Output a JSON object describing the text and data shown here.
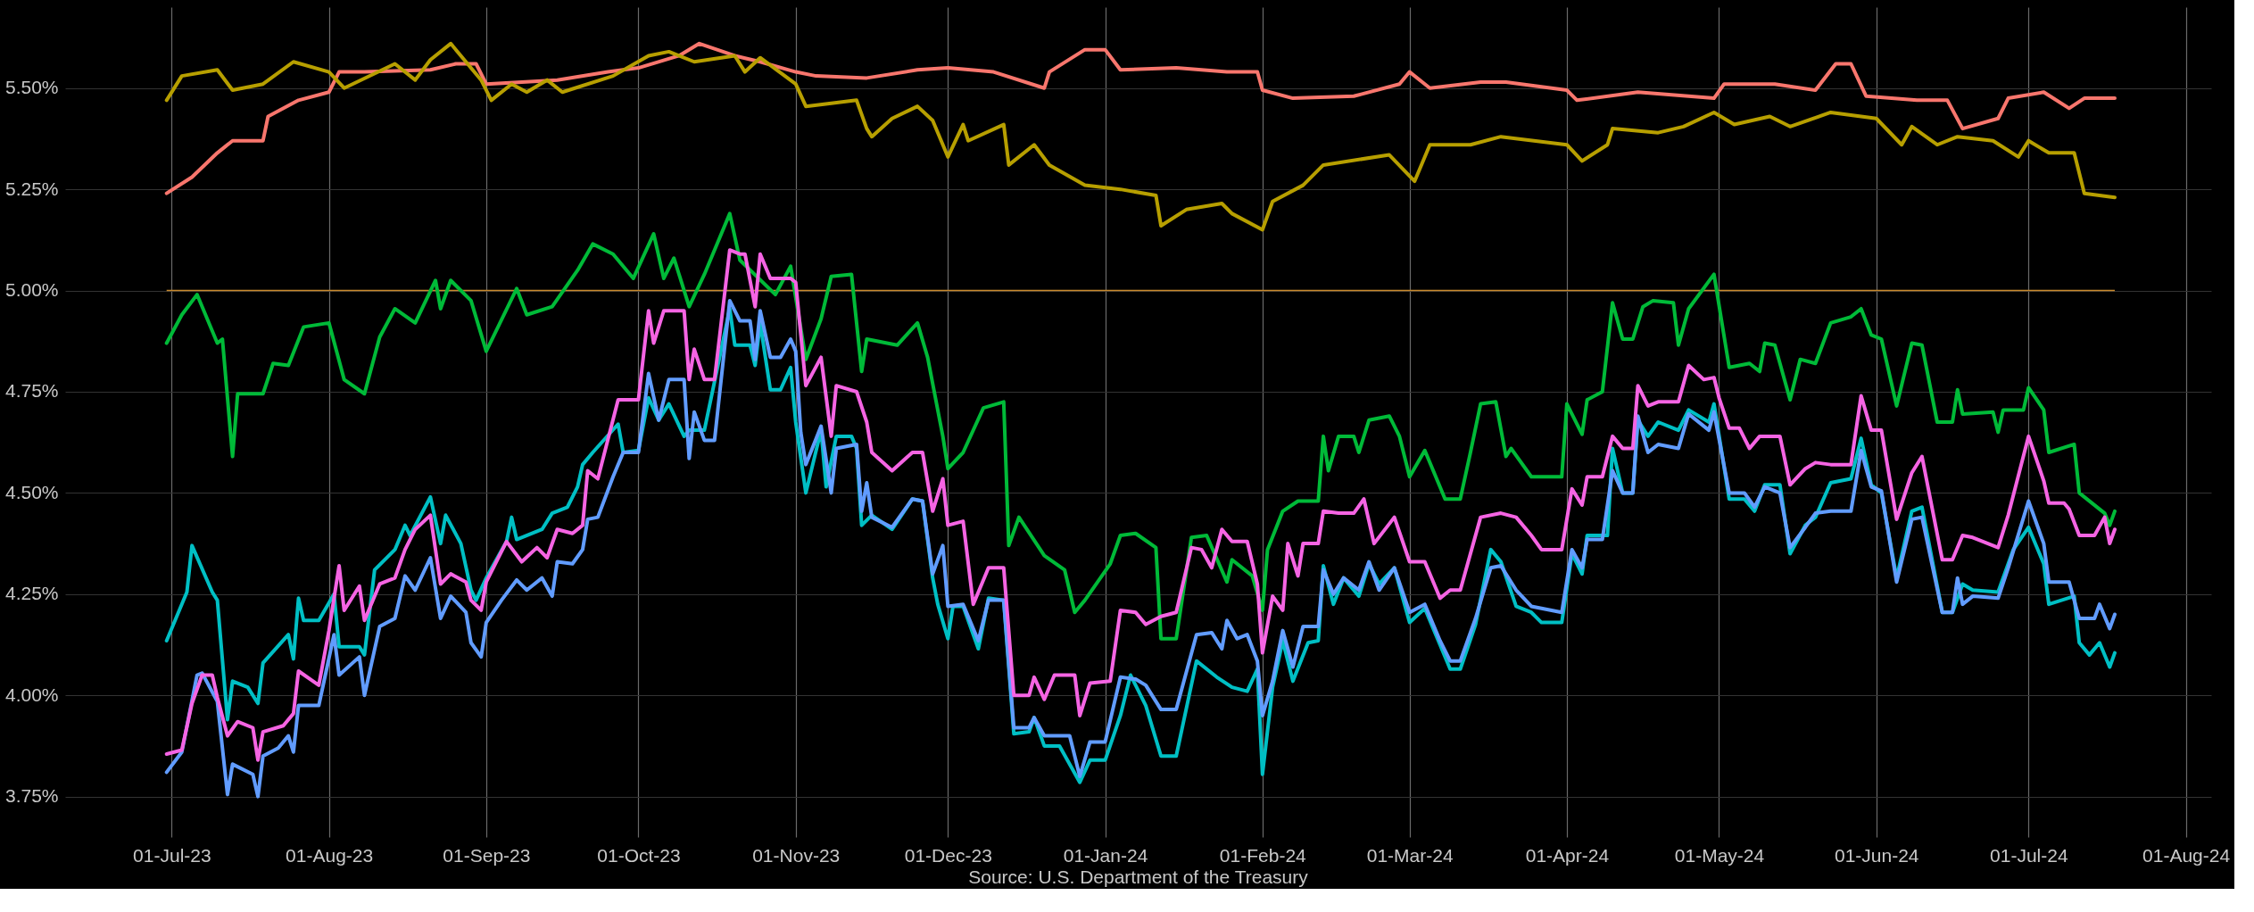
{
  "chart_data": {
    "type": "line",
    "xlim": [
      "2023-06-10",
      "2024-08-06"
    ],
    "ylim": [
      3.65,
      5.7
    ],
    "xticks": [
      {
        "value": "2023-07-01",
        "label": "01-Jul-23"
      },
      {
        "value": "2023-08-01",
        "label": "01-Aug-23"
      },
      {
        "value": "2023-09-01",
        "label": "01-Sep-23"
      },
      {
        "value": "2023-10-01",
        "label": "01-Oct-23"
      },
      {
        "value": "2023-11-01",
        "label": "01-Nov-23"
      },
      {
        "value": "2023-12-01",
        "label": "01-Dec-23"
      },
      {
        "value": "2024-01-01",
        "label": "01-Jan-24"
      },
      {
        "value": "2024-02-01",
        "label": "01-Feb-24"
      },
      {
        "value": "2024-03-01",
        "label": "01-Mar-24"
      },
      {
        "value": "2024-04-01",
        "label": "01-Apr-24"
      },
      {
        "value": "2024-05-01",
        "label": "01-May-24"
      },
      {
        "value": "2024-06-01",
        "label": "01-Jun-24"
      },
      {
        "value": "2024-07-01",
        "label": "01-Jul-24"
      },
      {
        "value": "2024-08-01",
        "label": "01-Aug-24"
      }
    ],
    "yticks": [
      {
        "value": 3.75,
        "label": "3.75%"
      },
      {
        "value": 4.0,
        "label": "4.00%"
      },
      {
        "value": 4.25,
        "label": "4.25%"
      },
      {
        "value": 4.5,
        "label": "4.50%"
      },
      {
        "value": 4.75,
        "label": "4.75%"
      },
      {
        "value": 5.0,
        "label": "5.00%"
      },
      {
        "value": 5.25,
        "label": "5.25%"
      },
      {
        "value": 5.5,
        "label": "5.50%"
      }
    ],
    "grid": true,
    "legend": false,
    "line_style": "solid",
    "ref_lines": [
      {
        "axis": "y",
        "value": 5.0,
        "label": null,
        "color": "#c98a2e"
      }
    ],
    "annotations": [
      "Source: U.S. Department of the Treasury"
    ],
    "series": [
      {
        "color": "#f8766d",
        "x": [
          "2023-06-30",
          "2023-07-05",
          "2023-07-10",
          "2023-07-13",
          "2023-07-19",
          "2023-07-20",
          "2023-07-26",
          "2023-08-01",
          "2023-08-03",
          "2023-08-08",
          "2023-08-21",
          "2023-08-26",
          "2023-08-30",
          "2023-09-01",
          "2023-09-15",
          "2023-09-25",
          "2023-10-01",
          "2023-10-09",
          "2023-10-13",
          "2023-10-20",
          "2023-10-25",
          "2023-11-01",
          "2023-11-05",
          "2023-11-15",
          "2023-11-25",
          "2023-12-01",
          "2023-12-10",
          "2023-12-20",
          "2023-12-21",
          "2023-12-28",
          "2024-01-01",
          "2024-01-04",
          "2024-01-15",
          "2024-01-25",
          "2024-01-31",
          "2024-02-01",
          "2024-02-07",
          "2024-02-19",
          "2024-02-28",
          "2024-03-01",
          "2024-03-05",
          "2024-03-15",
          "2024-03-20",
          "2024-04-01",
          "2024-04-03",
          "2024-04-15",
          "2024-04-25",
          "2024-04-30",
          "2024-05-02",
          "2024-05-12",
          "2024-05-20",
          "2024-05-24",
          "2024-05-27",
          "2024-05-30",
          "2024-06-09",
          "2024-06-15",
          "2024-06-18",
          "2024-06-25",
          "2024-06-27",
          "2024-07-04",
          "2024-07-09",
          "2024-07-12",
          "2024-07-18"
        ],
        "values": [
          5.24,
          5.28,
          5.34,
          5.37,
          5.37,
          5.43,
          5.47,
          5.49,
          5.54,
          5.54,
          5.545,
          5.56,
          5.56,
          5.51,
          5.52,
          5.54,
          5.55,
          5.58,
          5.61,
          5.58,
          5.565,
          5.54,
          5.53,
          5.525,
          5.545,
          5.55,
          5.54,
          5.5,
          5.54,
          5.595,
          5.595,
          5.545,
          5.55,
          5.54,
          5.54,
          5.495,
          5.475,
          5.48,
          5.51,
          5.54,
          5.5,
          5.515,
          5.515,
          5.495,
          5.47,
          5.49,
          5.48,
          5.475,
          5.51,
          5.51,
          5.495,
          5.56,
          5.56,
          5.48,
          5.47,
          5.47,
          5.4,
          5.425,
          5.475,
          5.49,
          5.45,
          5.475,
          5.475
        ]
      },
      {
        "color": "#b79f00",
        "x": [
          "2023-06-30",
          "2023-07-03",
          "2023-07-10",
          "2023-07-13",
          "2023-07-19",
          "2023-07-25",
          "2023-08-01",
          "2023-08-04",
          "2023-08-14",
          "2023-08-18",
          "2023-08-21",
          "2023-08-25",
          "2023-08-31",
          "2023-09-02",
          "2023-09-06",
          "2023-09-09",
          "2023-09-13",
          "2023-09-16",
          "2023-09-26",
          "2023-10-03",
          "2023-10-07",
          "2023-10-12",
          "2023-10-20",
          "2023-10-22",
          "2023-10-25",
          "2023-11-01",
          "2023-11-03",
          "2023-11-13",
          "2023-11-15",
          "2023-11-16",
          "2023-11-20",
          "2023-11-25",
          "2023-11-28",
          "2023-12-01",
          "2023-12-04",
          "2023-12-05",
          "2023-12-12",
          "2023-12-13",
          "2023-12-18",
          "2023-12-21",
          "2023-12-28",
          "2024-01-04",
          "2024-01-11",
          "2024-01-12",
          "2024-01-17",
          "2024-01-24",
          "2024-01-26",
          "2024-02-01",
          "2024-02-03",
          "2024-02-09",
          "2024-02-13",
          "2024-02-26",
          "2024-03-02",
          "2024-03-05",
          "2024-03-13",
          "2024-03-19",
          "2024-04-01",
          "2024-04-04",
          "2024-04-09",
          "2024-04-10",
          "2024-04-19",
          "2024-04-24",
          "2024-04-30",
          "2024-05-04",
          "2024-05-11",
          "2024-05-15",
          "2024-05-23",
          "2024-06-01",
          "2024-06-06",
          "2024-06-08",
          "2024-06-13",
          "2024-06-17",
          "2024-06-24",
          "2024-06-29",
          "2024-07-01",
          "2024-07-05",
          "2024-07-10",
          "2024-07-12",
          "2024-07-18"
        ],
        "values": [
          5.47,
          5.53,
          5.545,
          5.495,
          5.51,
          5.565,
          5.54,
          5.5,
          5.56,
          5.52,
          5.57,
          5.61,
          5.52,
          5.47,
          5.51,
          5.49,
          5.52,
          5.49,
          5.53,
          5.58,
          5.59,
          5.565,
          5.58,
          5.54,
          5.575,
          5.51,
          5.455,
          5.47,
          5.4,
          5.38,
          5.425,
          5.455,
          5.42,
          5.33,
          5.41,
          5.37,
          5.41,
          5.31,
          5.36,
          5.31,
          5.26,
          5.25,
          5.235,
          5.16,
          5.2,
          5.215,
          5.19,
          5.15,
          5.22,
          5.26,
          5.31,
          5.335,
          5.27,
          5.36,
          5.36,
          5.38,
          5.36,
          5.32,
          5.36,
          5.4,
          5.39,
          5.405,
          5.44,
          5.41,
          5.43,
          5.405,
          5.44,
          5.425,
          5.36,
          5.405,
          5.36,
          5.38,
          5.37,
          5.33,
          5.37,
          5.34,
          5.34,
          5.24,
          5.23
        ]
      },
      {
        "color": "#00ba38",
        "x": [
          "2023-06-30",
          "2023-07-03",
          "2023-07-06",
          "2023-07-10",
          "2023-07-11",
          "2023-07-13",
          "2023-07-14",
          "2023-07-19",
          "2023-07-21",
          "2023-07-24",
          "2023-07-27",
          "2023-08-01",
          "2023-08-04",
          "2023-08-08",
          "2023-08-11",
          "2023-08-14",
          "2023-08-18",
          "2023-08-22",
          "2023-08-23",
          "2023-08-25",
          "2023-08-29",
          "2023-09-01",
          "2023-09-07",
          "2023-09-09",
          "2023-09-14",
          "2023-09-19",
          "2023-09-22",
          "2023-09-26",
          "2023-09-30",
          "2023-10-04",
          "2023-10-06",
          "2023-10-08",
          "2023-10-11",
          "2023-10-14",
          "2023-10-19",
          "2023-10-21",
          "2023-10-28",
          "2023-10-31",
          "2023-11-03",
          "2023-11-06",
          "2023-11-08",
          "2023-11-12",
          "2023-11-14",
          "2023-11-15",
          "2023-11-21",
          "2023-11-25",
          "2023-11-27",
          "2023-11-30",
          "2023-12-01",
          "2023-12-04",
          "2023-12-08",
          "2023-12-12",
          "2023-12-13",
          "2023-12-15",
          "2023-12-20",
          "2023-12-24",
          "2023-12-26",
          "2023-12-28",
          "2024-01-02",
          "2024-01-04",
          "2024-01-07",
          "2024-01-11",
          "2024-01-12",
          "2024-01-15",
          "2024-01-18",
          "2024-01-21",
          "2024-01-25",
          "2024-01-26",
          "2024-01-30",
          "2024-02-01",
          "2024-02-02",
          "2024-02-05",
          "2024-02-08",
          "2024-02-12",
          "2024-02-13",
          "2024-02-14",
          "2024-02-16",
          "2024-02-19",
          "2024-02-20",
          "2024-02-22",
          "2024-02-26",
          "2024-02-28",
          "2024-03-01",
          "2024-03-04",
          "2024-03-08",
          "2024-03-11",
          "2024-03-13",
          "2024-03-15",
          "2024-03-18",
          "2024-03-20",
          "2024-03-21",
          "2024-03-25",
          "2024-03-31",
          "2024-04-01",
          "2024-04-04",
          "2024-04-05",
          "2024-04-08",
          "2024-04-10",
          "2024-04-12",
          "2024-04-14",
          "2024-04-16",
          "2024-04-18",
          "2024-04-22",
          "2024-04-23",
          "2024-04-25",
          "2024-04-30",
          "2024-05-03",
          "2024-05-07",
          "2024-05-09",
          "2024-05-10",
          "2024-05-12",
          "2024-05-15",
          "2024-05-17",
          "2024-05-20",
          "2024-05-23",
          "2024-05-27",
          "2024-05-29",
          "2024-05-31",
          "2024-06-02",
          "2024-06-05",
          "2024-06-08",
          "2024-06-10",
          "2024-06-13",
          "2024-06-16",
          "2024-06-17",
          "2024-06-18",
          "2024-06-24",
          "2024-06-25",
          "2024-06-26",
          "2024-06-30",
          "2024-07-01",
          "2024-07-04",
          "2024-07-05",
          "2024-07-10",
          "2024-07-11",
          "2024-07-16",
          "2024-07-17",
          "2024-07-18"
        ],
        "values": [
          4.87,
          4.94,
          4.99,
          4.87,
          4.88,
          4.59,
          4.745,
          4.745,
          4.82,
          4.815,
          4.91,
          4.92,
          4.78,
          4.745,
          4.885,
          4.955,
          4.92,
          5.025,
          4.955,
          5.025,
          4.975,
          4.85,
          5.005,
          4.94,
          4.96,
          5.05,
          5.115,
          5.09,
          5.03,
          5.14,
          5.03,
          5.08,
          4.96,
          5.04,
          5.19,
          5.075,
          4.99,
          5.06,
          4.83,
          4.93,
          5.035,
          5.04,
          4.8,
          4.88,
          4.865,
          4.92,
          4.835,
          4.64,
          4.56,
          4.6,
          4.71,
          4.725,
          4.37,
          4.44,
          4.345,
          4.31,
          4.205,
          4.235,
          4.325,
          4.395,
          4.4,
          4.365,
          4.14,
          4.14,
          4.39,
          4.395,
          4.28,
          4.335,
          4.295,
          4.21,
          4.36,
          4.455,
          4.48,
          4.48,
          4.64,
          4.555,
          4.64,
          4.64,
          4.6,
          4.68,
          4.69,
          4.64,
          4.54,
          4.605,
          4.485,
          4.485,
          4.6,
          4.72,
          4.725,
          4.59,
          4.61,
          4.54,
          4.54,
          4.72,
          4.645,
          4.73,
          4.75,
          4.97,
          4.88,
          4.88,
          4.96,
          4.975,
          4.97,
          4.865,
          4.955,
          5.04,
          4.81,
          4.82,
          4.8,
          4.87,
          4.865,
          4.73,
          4.83,
          4.82,
          4.92,
          4.935,
          4.955,
          4.89,
          4.88,
          4.715,
          4.87,
          4.865,
          4.675,
          4.675,
          4.755,
          4.695,
          4.7,
          4.65,
          4.705,
          4.705,
          4.76,
          4.705,
          4.6,
          4.62,
          4.5,
          4.45,
          4.42,
          4.455
        ]
      },
      {
        "color": "#00bfc4",
        "x": [
          "2023-06-30",
          "2023-07-04",
          "2023-07-05",
          "2023-07-09",
          "2023-07-10",
          "2023-07-12",
          "2023-07-13",
          "2023-07-16",
          "2023-07-18",
          "2023-07-19",
          "2023-07-24",
          "2023-07-25",
          "2023-07-26",
          "2023-07-27",
          "2023-07-30",
          "2023-08-02",
          "2023-08-03",
          "2023-08-07",
          "2023-08-08",
          "2023-08-10",
          "2023-08-14",
          "2023-08-16",
          "2023-08-17",
          "2023-08-21",
          "2023-08-23",
          "2023-08-24",
          "2023-08-27",
          "2023-08-29",
          "2023-08-30",
          "2023-09-01",
          "2023-09-05",
          "2023-09-06",
          "2023-09-07",
          "2023-09-12",
          "2023-09-14",
          "2023-09-17",
          "2023-09-19",
          "2023-09-20",
          "2023-09-22",
          "2023-09-27",
          "2023-09-28",
          "2023-10-01",
          "2023-10-03",
          "2023-10-05",
          "2023-10-07",
          "2023-10-10",
          "2023-10-11",
          "2023-10-14",
          "2023-10-19",
          "2023-10-20",
          "2023-10-23",
          "2023-10-24",
          "2023-10-25",
          "2023-10-27",
          "2023-10-29",
          "2023-10-31",
          "2023-11-01",
          "2023-11-03",
          "2023-11-06",
          "2023-11-07",
          "2023-11-09",
          "2023-11-12",
          "2023-11-13",
          "2023-11-14",
          "2023-11-16",
          "2023-11-20",
          "2023-11-24",
          "2023-11-26",
          "2023-11-28",
          "2023-11-29",
          "2023-12-01",
          "2023-12-02",
          "2023-12-04",
          "2023-12-07",
          "2023-12-09",
          "2023-12-12",
          "2023-12-14",
          "2023-12-17",
          "2023-12-18",
          "2023-12-20",
          "2023-12-23",
          "2023-12-27",
          "2023-12-29",
          "2024-01-01",
          "2024-01-04",
          "2024-01-06",
          "2024-01-09",
          "2024-01-12",
          "2024-01-15",
          "2024-01-19",
          "2024-01-23",
          "2024-01-26",
          "2024-01-29",
          "2024-01-31",
          "2024-02-01",
          "2024-02-03",
          "2024-02-05",
          "2024-02-07",
          "2024-02-10",
          "2024-02-12",
          "2024-02-13",
          "2024-02-15",
          "2024-02-17",
          "2024-02-20",
          "2024-02-22",
          "2024-02-24",
          "2024-02-27",
          "2024-03-01",
          "2024-03-04",
          "2024-03-07",
          "2024-03-09",
          "2024-03-11",
          "2024-03-14",
          "2024-03-17",
          "2024-03-19",
          "2024-03-22",
          "2024-03-25",
          "2024-03-27",
          "2024-03-31",
          "2024-04-02",
          "2024-04-04",
          "2024-04-05",
          "2024-04-09",
          "2024-04-10",
          "2024-04-12",
          "2024-04-14",
          "2024-04-15",
          "2024-04-17",
          "2024-04-19",
          "2024-04-23",
          "2024-04-25",
          "2024-04-29",
          "2024-04-30",
          "2024-05-03",
          "2024-05-06",
          "2024-05-08",
          "2024-05-10",
          "2024-05-13",
          "2024-05-15",
          "2024-05-18",
          "2024-05-20",
          "2024-05-23",
          "2024-05-27",
          "2024-05-29",
          "2024-05-31",
          "2024-06-02",
          "2024-06-05",
          "2024-06-08",
          "2024-06-10",
          "2024-06-14",
          "2024-06-16",
          "2024-06-18",
          "2024-06-20",
          "2024-06-25",
          "2024-06-28",
          "2024-07-01",
          "2024-07-04",
          "2024-07-05",
          "2024-07-10",
          "2024-07-11",
          "2024-07-13",
          "2024-07-15",
          "2024-07-17",
          "2024-07-18"
        ],
        "values": [
          4.135,
          4.255,
          4.37,
          4.255,
          4.235,
          3.94,
          4.035,
          4.02,
          3.98,
          4.08,
          4.15,
          4.09,
          4.24,
          4.185,
          4.185,
          4.25,
          4.12,
          4.12,
          4.1,
          4.31,
          4.36,
          4.42,
          4.395,
          4.49,
          4.375,
          4.445,
          4.375,
          4.26,
          4.235,
          4.29,
          4.38,
          4.44,
          4.385,
          4.41,
          4.45,
          4.465,
          4.515,
          4.57,
          4.6,
          4.67,
          4.6,
          4.605,
          4.735,
          4.68,
          4.72,
          4.64,
          4.655,
          4.655,
          4.955,
          4.865,
          4.865,
          4.815,
          4.92,
          4.755,
          4.755,
          4.81,
          4.675,
          4.5,
          4.655,
          4.515,
          4.64,
          4.64,
          4.61,
          4.42,
          4.445,
          4.41,
          4.485,
          4.48,
          4.29,
          4.225,
          4.14,
          4.22,
          4.22,
          4.115,
          4.24,
          4.235,
          3.905,
          3.91,
          3.945,
          3.875,
          3.875,
          3.785,
          3.84,
          3.84,
          3.95,
          4.05,
          3.975,
          3.85,
          3.85,
          4.085,
          4.045,
          4.02,
          4.01,
          4.065,
          3.805,
          4.02,
          4.135,
          4.035,
          4.13,
          4.135,
          4.32,
          4.225,
          4.29,
          4.245,
          4.325,
          4.275,
          4.315,
          4.18,
          4.215,
          4.125,
          4.065,
          4.065,
          4.175,
          4.36,
          4.33,
          4.22,
          4.205,
          4.18,
          4.18,
          4.35,
          4.3,
          4.395,
          4.395,
          4.61,
          4.5,
          4.5,
          4.68,
          4.64,
          4.675,
          4.655,
          4.705,
          4.675,
          4.72,
          4.485,
          4.485,
          4.455,
          4.52,
          4.52,
          4.35,
          4.42,
          4.44,
          4.525,
          4.535,
          4.635,
          4.52,
          4.5,
          4.29,
          4.455,
          4.465,
          4.205,
          4.205,
          4.275,
          4.26,
          4.255,
          4.36,
          4.415,
          4.325,
          4.225,
          4.245,
          4.13,
          4.1,
          4.13,
          4.07,
          4.105
        ]
      },
      {
        "color": "#619cff",
        "x": [
          "2023-06-30",
          "2023-07-03",
          "2023-07-06",
          "2023-07-07",
          "2023-07-10",
          "2023-07-12",
          "2023-07-13",
          "2023-07-17",
          "2023-07-18",
          "2023-07-19",
          "2023-07-22",
          "2023-07-24",
          "2023-07-25",
          "2023-07-26",
          "2023-07-30",
          "2023-08-02",
          "2023-08-03",
          "2023-08-07",
          "2023-08-08",
          "2023-08-11",
          "2023-08-14",
          "2023-08-16",
          "2023-08-18",
          "2023-08-21",
          "2023-08-23",
          "2023-08-25",
          "2023-08-28",
          "2023-08-29",
          "2023-08-31",
          "2023-09-01",
          "2023-09-04",
          "2023-09-07",
          "2023-09-09",
          "2023-09-12",
          "2023-09-14",
          "2023-09-15",
          "2023-09-18",
          "2023-09-20",
          "2023-09-21",
          "2023-09-23",
          "2023-09-26",
          "2023-09-28",
          "2023-10-01",
          "2023-10-03",
          "2023-10-05",
          "2023-10-07",
          "2023-10-10",
          "2023-10-11",
          "2023-10-12",
          "2023-10-14",
          "2023-10-16",
          "2023-10-19",
          "2023-10-21",
          "2023-10-23",
          "2023-10-24",
          "2023-10-25",
          "2023-10-27",
          "2023-10-29",
          "2023-10-31",
          "2023-11-01",
          "2023-11-02",
          "2023-11-03",
          "2023-11-06",
          "2023-11-08",
          "2023-11-09",
          "2023-11-13",
          "2023-11-14",
          "2023-11-15",
          "2023-11-16",
          "2023-11-20",
          "2023-11-24",
          "2023-11-26",
          "2023-11-28",
          "2023-11-30",
          "2023-12-01",
          "2023-12-04",
          "2023-12-07",
          "2023-12-09",
          "2023-12-12",
          "2023-12-14",
          "2023-12-17",
          "2023-12-18",
          "2023-12-20",
          "2023-12-25",
          "2023-12-27",
          "2023-12-29",
          "2024-01-01",
          "2024-01-04",
          "2024-01-07",
          "2024-01-09",
          "2024-01-12",
          "2024-01-15",
          "2024-01-19",
          "2024-01-22",
          "2024-01-24",
          "2024-01-25",
          "2024-01-27",
          "2024-01-29",
          "2024-01-31",
          "2024-02-01",
          "2024-02-03",
          "2024-02-05",
          "2024-02-07",
          "2024-02-09",
          "2024-02-12",
          "2024-02-13",
          "2024-02-15",
          "2024-02-17",
          "2024-02-20",
          "2024-02-22",
          "2024-02-24",
          "2024-02-27",
          "2024-03-01",
          "2024-03-04",
          "2024-03-07",
          "2024-03-09",
          "2024-03-11",
          "2024-03-14",
          "2024-03-17",
          "2024-03-19",
          "2024-03-22",
          "2024-03-25",
          "2024-03-31",
          "2024-04-02",
          "2024-04-04",
          "2024-04-05",
          "2024-04-08",
          "2024-04-10",
          "2024-04-12",
          "2024-04-14",
          "2024-04-15",
          "2024-04-17",
          "2024-04-19",
          "2024-04-23",
          "2024-04-25",
          "2024-04-29",
          "2024-04-30",
          "2024-05-03",
          "2024-05-06",
          "2024-05-08",
          "2024-05-10",
          "2024-05-13",
          "2024-05-15",
          "2024-05-18",
          "2024-05-20",
          "2024-05-23",
          "2024-05-27",
          "2024-05-29",
          "2024-05-31",
          "2024-06-02",
          "2024-06-05",
          "2024-06-08",
          "2024-06-10",
          "2024-06-14",
          "2024-06-16",
          "2024-06-17",
          "2024-06-18",
          "2024-06-20",
          "2024-06-25",
          "2024-06-27",
          "2024-07-01",
          "2024-07-04",
          "2024-07-05",
          "2024-07-09",
          "2024-07-11",
          "2024-07-14",
          "2024-07-15",
          "2024-07-17",
          "2024-07-18"
        ],
        "values": [
          3.81,
          3.86,
          4.05,
          4.055,
          3.985,
          3.755,
          3.83,
          3.805,
          3.75,
          3.85,
          3.87,
          3.9,
          3.86,
          3.975,
          3.975,
          4.15,
          4.05,
          4.095,
          4.0,
          4.17,
          4.19,
          4.295,
          4.26,
          4.34,
          4.19,
          4.245,
          4.205,
          4.13,
          4.095,
          4.18,
          4.235,
          4.285,
          4.26,
          4.29,
          4.245,
          4.33,
          4.325,
          4.36,
          4.435,
          4.44,
          4.54,
          4.6,
          4.6,
          4.795,
          4.68,
          4.78,
          4.78,
          4.585,
          4.7,
          4.63,
          4.63,
          4.975,
          4.925,
          4.925,
          4.83,
          4.95,
          4.835,
          4.835,
          4.88,
          4.85,
          4.65,
          4.57,
          4.665,
          4.5,
          4.61,
          4.62,
          4.455,
          4.525,
          4.44,
          4.415,
          4.485,
          4.48,
          4.3,
          4.37,
          4.22,
          4.225,
          4.135,
          4.235,
          4.235,
          3.92,
          3.92,
          3.945,
          3.9,
          3.9,
          3.8,
          3.885,
          3.885,
          4.045,
          4.04,
          4.025,
          3.965,
          3.965,
          4.15,
          4.155,
          4.115,
          4.185,
          4.14,
          4.15,
          4.085,
          3.95,
          4.035,
          4.16,
          4.07,
          4.17,
          4.17,
          4.31,
          4.25,
          4.29,
          4.26,
          4.33,
          4.26,
          4.315,
          4.205,
          4.225,
          4.135,
          4.085,
          4.085,
          4.19,
          4.315,
          4.32,
          4.26,
          4.22,
          4.205,
          4.36,
          4.315,
          4.385,
          4.385,
          4.555,
          4.5,
          4.5,
          4.69,
          4.6,
          4.62,
          4.61,
          4.695,
          4.655,
          4.7,
          4.5,
          4.5,
          4.465,
          4.515,
          4.5,
          4.365,
          4.415,
          4.45,
          4.455,
          4.455,
          4.605,
          4.515,
          4.505,
          4.28,
          4.435,
          4.44,
          4.205,
          4.205,
          4.29,
          4.225,
          4.245,
          4.24,
          4.315,
          4.48,
          4.375,
          4.28,
          4.28,
          4.19,
          4.19,
          4.225,
          4.165,
          4.2
        ]
      },
      {
        "color": "#f564e3",
        "x": [
          "2023-06-30",
          "2023-07-03",
          "2023-07-05",
          "2023-07-07",
          "2023-07-09",
          "2023-07-10",
          "2023-07-12",
          "2023-07-14",
          "2023-07-17",
          "2023-07-18",
          "2023-07-19",
          "2023-07-23",
          "2023-07-25",
          "2023-07-26",
          "2023-07-30",
          "2023-08-01",
          "2023-08-03",
          "2023-08-04",
          "2023-08-07",
          "2023-08-08",
          "2023-08-11",
          "2023-08-14",
          "2023-08-16",
          "2023-08-18",
          "2023-08-21",
          "2023-08-23",
          "2023-08-25",
          "2023-08-28",
          "2023-08-29",
          "2023-08-31",
          "2023-09-01",
          "2023-09-05",
          "2023-09-08",
          "2023-09-11",
          "2023-09-13",
          "2023-09-15",
          "2023-09-18",
          "2023-09-20",
          "2023-09-21",
          "2023-09-23",
          "2023-09-27",
          "2023-09-29",
          "2023-10-01",
          "2023-10-03",
          "2023-10-04",
          "2023-10-06",
          "2023-10-10",
          "2023-10-11",
          "2023-10-12",
          "2023-10-14",
          "2023-10-16",
          "2023-10-19",
          "2023-10-21",
          "2023-10-22",
          "2023-10-24",
          "2023-10-25",
          "2023-10-27",
          "2023-10-31",
          "2023-11-01",
          "2023-11-03",
          "2023-11-06",
          "2023-11-08",
          "2023-11-09",
          "2023-11-13",
          "2023-11-15",
          "2023-11-16",
          "2023-11-20",
          "2023-11-24",
          "2023-11-26",
          "2023-11-28",
          "2023-11-30",
          "2023-12-01",
          "2023-12-04",
          "2023-12-06",
          "2023-12-09",
          "2023-12-12",
          "2023-12-14",
          "2023-12-17",
          "2023-12-18",
          "2023-12-20",
          "2023-12-22",
          "2023-12-26",
          "2023-12-27",
          "2023-12-29",
          "2024-01-02",
          "2024-01-04",
          "2024-01-07",
          "2024-01-09",
          "2024-01-12",
          "2024-01-15",
          "2024-01-18",
          "2024-01-20",
          "2024-01-22",
          "2024-01-24",
          "2024-01-26",
          "2024-01-29",
          "2024-01-31",
          "2024-02-01",
          "2024-02-03",
          "2024-02-05",
          "2024-02-06",
          "2024-02-08",
          "2024-02-09",
          "2024-02-12",
          "2024-02-13",
          "2024-02-16",
          "2024-02-19",
          "2024-02-21",
          "2024-02-23",
          "2024-02-27",
          "2024-03-01",
          "2024-03-04",
          "2024-03-07",
          "2024-03-09",
          "2024-03-11",
          "2024-03-15",
          "2024-03-19",
          "2024-03-22",
          "2024-03-25",
          "2024-03-27",
          "2024-03-31",
          "2024-04-02",
          "2024-04-04",
          "2024-04-05",
          "2024-04-08",
          "2024-04-10",
          "2024-04-12",
          "2024-04-14",
          "2024-04-15",
          "2024-04-17",
          "2024-04-19",
          "2024-04-23",
          "2024-04-25",
          "2024-04-28",
          "2024-04-30",
          "2024-05-01",
          "2024-05-03",
          "2024-05-05",
          "2024-05-07",
          "2024-05-09",
          "2024-05-13",
          "2024-05-15",
          "2024-05-18",
          "2024-05-20",
          "2024-05-23",
          "2024-05-27",
          "2024-05-29",
          "2024-05-31",
          "2024-06-02",
          "2024-06-05",
          "2024-06-08",
          "2024-06-10",
          "2024-06-14",
          "2024-06-16",
          "2024-06-18",
          "2024-06-20",
          "2024-06-25",
          "2024-06-27",
          "2024-07-01",
          "2024-07-04",
          "2024-07-05",
          "2024-07-08",
          "2024-07-09",
          "2024-07-11",
          "2024-07-14",
          "2024-07-16",
          "2024-07-17",
          "2024-07-18"
        ],
        "values": [
          3.855,
          3.865,
          3.98,
          4.05,
          4.05,
          3.995,
          3.9,
          3.935,
          3.92,
          3.84,
          3.91,
          3.925,
          3.955,
          4.06,
          4.025,
          4.16,
          4.32,
          4.21,
          4.27,
          4.185,
          4.275,
          4.29,
          4.36,
          4.41,
          4.445,
          4.275,
          4.3,
          4.28,
          4.235,
          4.21,
          4.28,
          4.38,
          4.33,
          4.365,
          4.34,
          4.41,
          4.4,
          4.42,
          4.555,
          4.535,
          4.73,
          4.73,
          4.73,
          4.95,
          4.87,
          4.95,
          4.95,
          4.78,
          4.855,
          4.78,
          4.78,
          5.1,
          5.09,
          5.09,
          4.96,
          5.09,
          5.03,
          5.03,
          5.02,
          4.765,
          4.835,
          4.64,
          4.765,
          4.75,
          4.675,
          4.6,
          4.555,
          4.6,
          4.6,
          4.455,
          4.535,
          4.42,
          4.43,
          4.225,
          4.315,
          4.315,
          4.0,
          4.0,
          4.045,
          3.99,
          4.05,
          4.05,
          3.95,
          4.03,
          4.035,
          4.21,
          4.205,
          4.175,
          4.195,
          4.205,
          4.365,
          4.36,
          4.315,
          4.41,
          4.38,
          4.38,
          4.275,
          4.105,
          4.245,
          4.21,
          4.375,
          4.295,
          4.375,
          4.375,
          4.455,
          4.45,
          4.45,
          4.485,
          4.375,
          4.44,
          4.33,
          4.33,
          4.24,
          4.26,
          4.26,
          4.44,
          4.45,
          4.44,
          4.395,
          4.36,
          4.36,
          4.51,
          4.47,
          4.54,
          4.54,
          4.64,
          4.61,
          4.61,
          4.765,
          4.715,
          4.725,
          4.725,
          4.815,
          4.78,
          4.785,
          4.735,
          4.66,
          4.66,
          4.61,
          4.64,
          4.64,
          4.52,
          4.56,
          4.575,
          4.57,
          4.57,
          4.74,
          4.655,
          4.655,
          4.435,
          4.55,
          4.59,
          4.335,
          4.335,
          4.395,
          4.39,
          4.365,
          4.445,
          4.64,
          4.53,
          4.475,
          4.475,
          4.46,
          4.395,
          4.395,
          4.44,
          4.375,
          4.41
        ]
      }
    ]
  }
}
